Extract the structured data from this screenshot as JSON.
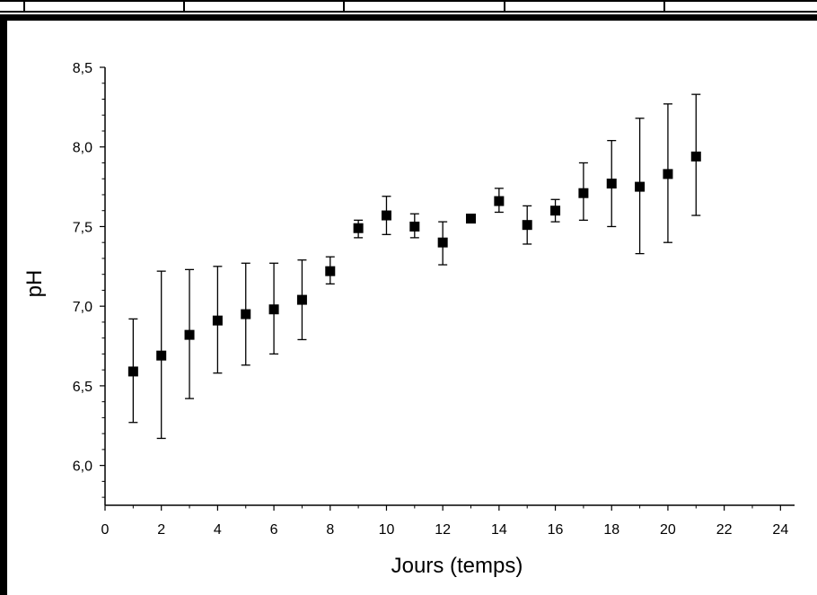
{
  "chart_data": {
    "type": "scatter",
    "title": "",
    "xlabel": "Jours (temps)",
    "ylabel": "pH",
    "xlim": [
      0,
      24.5
    ],
    "ylim": [
      5.75,
      8.5
    ],
    "x_ticks": [
      0,
      2,
      4,
      6,
      8,
      10,
      12,
      14,
      16,
      18,
      20,
      22,
      24
    ],
    "y_ticks": [
      6.0,
      6.5,
      7.0,
      7.5,
      8.0,
      8.5
    ],
    "y_tick_labels": [
      "6,0",
      "6,5",
      "7,0",
      "7,5",
      "8,0",
      "8,5"
    ],
    "marker": "square",
    "marker_color": "#000000",
    "grid": false,
    "legend": "none",
    "series": [
      {
        "x": [
          1,
          2,
          3,
          4,
          5,
          6,
          7,
          8,
          9,
          10,
          11,
          12,
          13,
          14,
          15,
          16,
          17,
          18,
          19,
          20,
          21
        ],
        "y": [
          6.59,
          6.69,
          6.82,
          6.91,
          6.95,
          6.98,
          7.04,
          7.22,
          7.49,
          7.57,
          7.5,
          7.4,
          7.55,
          7.66,
          7.51,
          7.6,
          7.71,
          7.77,
          7.75,
          7.83,
          7.94
        ],
        "error_low": [
          6.27,
          6.17,
          6.42,
          6.58,
          6.63,
          6.7,
          6.79,
          7.14,
          7.43,
          7.45,
          7.43,
          7.26,
          7.55,
          7.59,
          7.39,
          7.53,
          7.54,
          7.5,
          7.33,
          7.4,
          7.57
        ],
        "error_high": [
          6.92,
          7.22,
          7.23,
          7.25,
          7.27,
          7.27,
          7.29,
          7.31,
          7.54,
          7.69,
          7.58,
          7.53,
          7.55,
          7.74,
          7.63,
          7.67,
          7.9,
          8.04,
          8.18,
          8.27,
          8.33
        ]
      }
    ]
  }
}
